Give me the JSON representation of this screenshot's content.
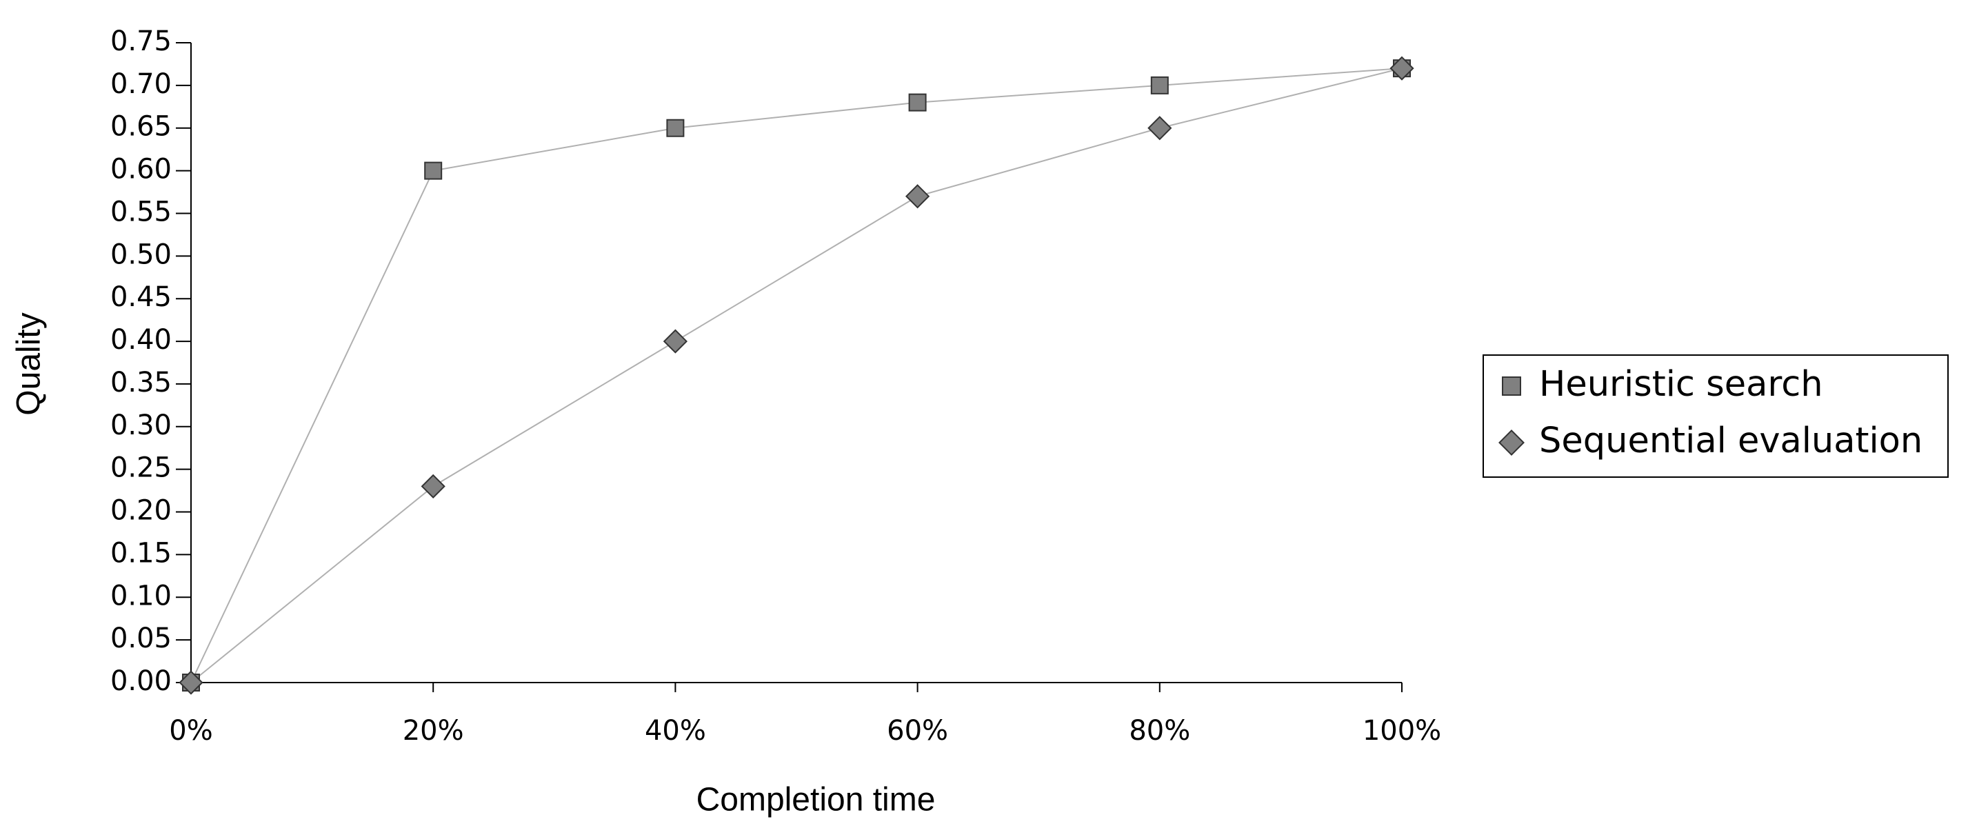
{
  "chart_data": {
    "type": "line",
    "x_label": "Completion time",
    "y_label": "Quality",
    "x": [
      0,
      20,
      40,
      60,
      80,
      100
    ],
    "series": [
      {
        "name": "Heuristic search",
        "color": "#808080",
        "marker": "square",
        "values": [
          0,
          0.6,
          0.65,
          0.68,
          0.7,
          0.72
        ]
      },
      {
        "name": "Sequential evaluation",
        "color": "#808080",
        "marker": "diamond",
        "values": [
          0,
          0.23,
          0.4,
          0.57,
          0.65,
          0.72
        ]
      }
    ],
    "line_color": "#b0b0b0",
    "xlim": [
      0,
      100
    ],
    "xticks": [
      {
        "value": 0,
        "label": "0%"
      },
      {
        "value": 20,
        "label": "20%"
      },
      {
        "value": 40,
        "label": "40%"
      },
      {
        "value": 60,
        "label": "60%"
      },
      {
        "value": 80,
        "label": "80%"
      },
      {
        "value": 100,
        "label": "100%"
      }
    ],
    "ylim": [
      0,
      0.75
    ],
    "yticks": [
      {
        "value": 0,
        "label": "0.00"
      },
      {
        "value": 0.05,
        "label": "0.05"
      },
      {
        "value": 0.1,
        "label": "0.10"
      },
      {
        "value": 0.15,
        "label": "0.15"
      },
      {
        "value": 0.2,
        "label": "0.20"
      },
      {
        "value": 0.25,
        "label": "0.25"
      },
      {
        "value": 0.3,
        "label": "0.30"
      },
      {
        "value": 0.35,
        "label": "0.35"
      },
      {
        "value": 0.4,
        "label": "0.40"
      },
      {
        "value": 0.45,
        "label": "0.45"
      },
      {
        "value": 0.5,
        "label": "0.50"
      },
      {
        "value": 0.55,
        "label": "0.55"
      },
      {
        "value": 0.6,
        "label": "0.60"
      },
      {
        "value": 0.65,
        "label": "0.65"
      },
      {
        "value": 0.7,
        "label": "0.70"
      },
      {
        "value": 0.75,
        "label": "0.75"
      }
    ],
    "grid": false,
    "legend_position": "right"
  }
}
